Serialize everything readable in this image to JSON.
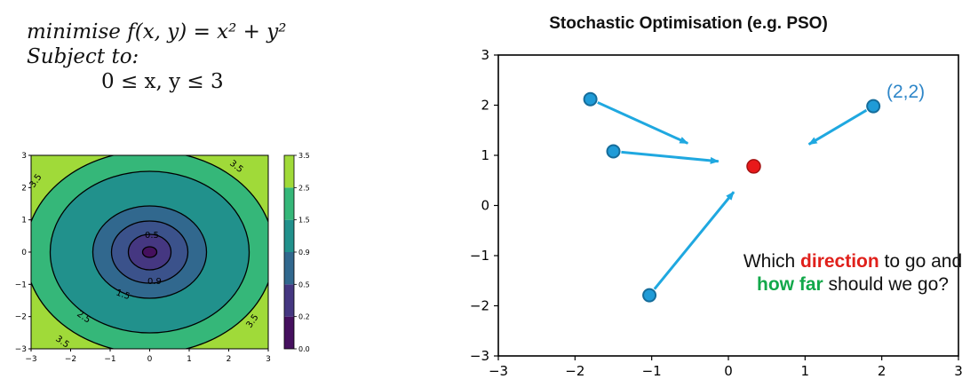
{
  "problem": {
    "line1": "minimise f(x, y) = x² + y²",
    "line2": "Subject to:",
    "line3": "0  ≤ x, y  ≤ 3"
  },
  "contour_plot": {
    "x_ticks": [
      "−3",
      "−2",
      "−1",
      "0",
      "1",
      "2",
      "3"
    ],
    "y_ticks": [
      "−3",
      "−2",
      "−1",
      "0",
      "1",
      "2",
      "3"
    ],
    "levels": [
      0.1,
      0.5,
      0.9,
      1.5,
      2.5,
      3.5
    ],
    "fill_colors": [
      "#45105e",
      "#453781",
      "#31688e",
      "#21918c",
      "#35b779",
      "#a0da39"
    ],
    "colorbar_ticks": [
      "0.0",
      "0.2",
      "0.5",
      "0.9",
      "1.5",
      "2.5",
      "3.5"
    ],
    "contour_labels": [
      {
        "text": "3.5"
      },
      {
        "text": "3.5"
      },
      {
        "text": "3.5"
      },
      {
        "text": "3.5"
      },
      {
        "text": "2.5"
      },
      {
        "text": "1.5"
      },
      {
        "text": "0.9"
      },
      {
        "text": "0.5"
      }
    ]
  },
  "pso_plot": {
    "title": "Stochastic Optimisation (e.g. PSO)",
    "x_ticks": [
      "−3",
      "−2",
      "−1",
      "0",
      "1",
      "2",
      "3"
    ],
    "y_ticks": [
      "−3",
      "−2",
      "−1",
      "0",
      "1",
      "2",
      "3"
    ],
    "particle_color": "#1f9bd7",
    "arrow_color": "#1fa8e0",
    "target_color": "#e8191a",
    "point_label": "(2,2)",
    "question": {
      "pre": "Which ",
      "direction": "direction",
      "mid": " to go and ",
      "how_far": "how far",
      "post": " should we go?"
    }
  },
  "chart_data": {
    "type": "scatter",
    "title": "Stochastic Optimisation (e.g. PSO)",
    "xlim": [
      -3,
      3
    ],
    "ylim": [
      -3,
      3
    ],
    "particles": [
      {
        "x": -1.8,
        "y": 2.12,
        "to_x": -0.53,
        "to_y": 1.24
      },
      {
        "x": -1.5,
        "y": 1.08,
        "to_x": -0.13,
        "to_y": 0.88
      },
      {
        "x": -1.03,
        "y": -1.79,
        "to_x": 0.07,
        "to_y": 0.27
      },
      {
        "x": 1.89,
        "y": 1.98,
        "to_x": 1.05,
        "to_y": 1.22
      }
    ],
    "target": {
      "x": 0.33,
      "y": 0.78
    }
  }
}
